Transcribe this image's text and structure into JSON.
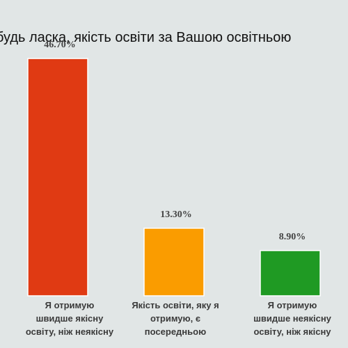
{
  "chart_data": {
    "type": "bar",
    "title": "будь ласка, якість освіти за Вашою освітньою",
    "xlabel": "",
    "ylabel": "",
    "ylim": [
      0,
      50
    ],
    "grid": false,
    "legend": "none",
    "categories": [
      [
        "Я отримую",
        "швидше якісну",
        "освіту, ніж неякісну"
      ],
      [
        "Якість освіти, яку я",
        "отримую, є",
        "посередньою"
      ],
      [
        "Я отримую",
        "швидше неякісну",
        "освіту, ніж якісну"
      ]
    ],
    "values": [
      46.7,
      13.3,
      8.9
    ],
    "value_labels": [
      "46.70%",
      "13.30%",
      "8.90%"
    ],
    "colors": [
      "#e03a13",
      "#fa9c00",
      "#1f9a23"
    ]
  }
}
